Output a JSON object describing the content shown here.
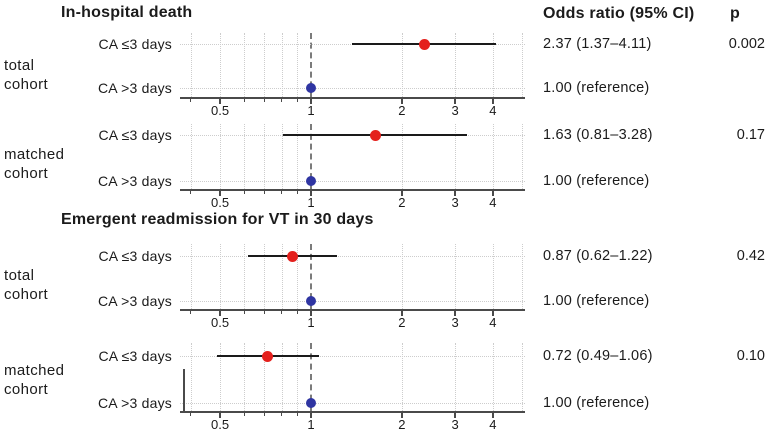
{
  "header": {
    "or_column": "Odds ratio (95% CI)",
    "p_column": "p"
  },
  "colors": {
    "significant_point": "#e4201d",
    "reference_point": "#2f35a2",
    "whisker": "#1a1a1a"
  },
  "chart_data": {
    "type": "forest",
    "scale": "log",
    "x_ticks": [
      0.5,
      1,
      2,
      3,
      4
    ],
    "x_minor_ticks": [
      0.4,
      0.6,
      0.7,
      0.8,
      0.9
    ],
    "x_grid": [
      0.4,
      0.5,
      0.6,
      0.7,
      0.8,
      0.9,
      2,
      3,
      4,
      5
    ],
    "x_range": [
      0.4,
      5
    ],
    "reference_line": 1,
    "sections": [
      {
        "title": "In-hospital death",
        "groups": [
          {
            "label": "total cohort",
            "label_lines": "total\ncohort",
            "rows": [
              {
                "label": "CA ≤3 days",
                "or": 2.37,
                "ci_low": 1.37,
                "ci_high": 4.11,
                "or_text": "2.37 (1.37–4.11)",
                "p": "0.002",
                "marker": "red"
              },
              {
                "label": "CA >3 days",
                "or": 1.0,
                "ci_low": null,
                "ci_high": null,
                "or_text": "1.00 (reference)",
                "p": "",
                "marker": "blue"
              }
            ]
          },
          {
            "label": "matched cohort",
            "label_lines": "matched\ncohort",
            "rows": [
              {
                "label": "CA ≤3 days",
                "or": 1.63,
                "ci_low": 0.81,
                "ci_high": 3.28,
                "or_text": "1.63 (0.81–3.28)",
                "p": "0.17",
                "marker": "red"
              },
              {
                "label": "CA >3 days",
                "or": 1.0,
                "ci_low": null,
                "ci_high": null,
                "or_text": "1.00 (reference)",
                "p": "",
                "marker": "blue"
              }
            ]
          }
        ]
      },
      {
        "title": "Emergent readmission for VT in 30 days",
        "groups": [
          {
            "label": "total cohort",
            "label_lines": "total\ncohort",
            "rows": [
              {
                "label": "CA ≤3 days",
                "or": 0.87,
                "ci_low": 0.62,
                "ci_high": 1.22,
                "or_text": "0.87 (0.62–1.22)",
                "p": "0.42",
                "marker": "red"
              },
              {
                "label": "CA >3 days",
                "or": 1.0,
                "ci_low": null,
                "ci_high": null,
                "or_text": "1.00 (reference)",
                "p": "",
                "marker": "blue"
              }
            ]
          },
          {
            "label": "matched cohort",
            "label_lines": "matched\ncohort",
            "rows": [
              {
                "label": "CA ≤3 days",
                "or": 0.72,
                "ci_low": 0.49,
                "ci_high": 1.06,
                "or_text": "0.72 (0.49–1.06)",
                "p": "0.10",
                "marker": "red"
              },
              {
                "label": "CA >3 days",
                "or": 1.0,
                "ci_low": null,
                "ci_high": null,
                "or_text": "1.00 (reference)",
                "p": "",
                "marker": "blue"
              }
            ]
          }
        ]
      }
    ]
  }
}
